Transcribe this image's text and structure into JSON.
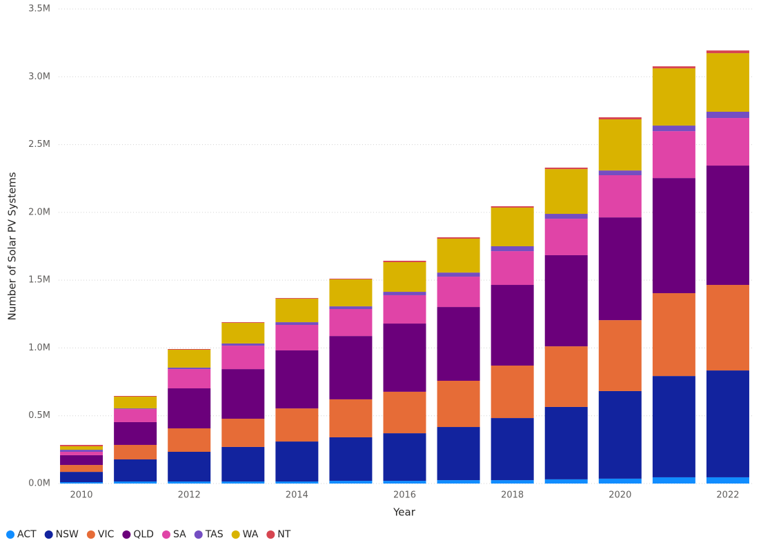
{
  "chart_data": {
    "type": "stacked_bar",
    "x_label": "Year",
    "y_label": "Number of Solar PV Systems",
    "categories": [
      "2010",
      null,
      "2012",
      null,
      "2014",
      null,
      "2016",
      null,
      "2018",
      null,
      "2020",
      null,
      "2022"
    ],
    "series": [
      {
        "name": "ACT",
        "color": "#118dff",
        "values": [
          10000,
          15000,
          15000,
          15000,
          15000,
          20000,
          20000,
          25000,
          25000,
          31000,
          36000,
          46000,
          46000
        ]
      },
      {
        "name": "NSW",
        "color": "#12239e",
        "values": [
          76000,
          163000,
          219000,
          255000,
          295000,
          321000,
          351000,
          392000,
          458000,
          534000,
          646000,
          747000,
          788000
        ]
      },
      {
        "name": "VIC",
        "color": "#e66c37",
        "values": [
          51000,
          107000,
          173000,
          208000,
          244000,
          280000,
          306000,
          341000,
          387000,
          447000,
          523000,
          611000,
          631000
        ]
      },
      {
        "name": "QLD",
        "color": "#6b007b",
        "values": [
          72000,
          168000,
          295000,
          366000,
          428000,
          467000,
          503000,
          544000,
          595000,
          672000,
          758000,
          849000,
          880000
        ]
      },
      {
        "name": "SA",
        "color": "#e044a7",
        "values": [
          25000,
          96000,
          142000,
          173000,
          188000,
          199000,
          209000,
          224000,
          249000,
          269000,
          311000,
          346000,
          351000
        ]
      },
      {
        "name": "TAS",
        "color": "#744ec2",
        "values": [
          15000,
          5000,
          11000,
          16000,
          20000,
          20000,
          25000,
          30000,
          36000,
          36000,
          35000,
          41000,
          46000
        ]
      },
      {
        "name": "WA",
        "color": "#d9b300",
        "values": [
          26000,
          87000,
          132000,
          152000,
          173000,
          199000,
          219000,
          250000,
          285000,
          330000,
          377000,
          422000,
          432000
        ]
      },
      {
        "name": "NT",
        "color": "#d64550",
        "values": [
          10000,
          5000,
          5000,
          5000,
          5000,
          5000,
          10000,
          10000,
          10000,
          11000,
          15000,
          15000,
          20000
        ]
      }
    ],
    "ylim": [
      0,
      3500000
    ],
    "yticks": [
      {
        "value": 0,
        "label": "0.0M"
      },
      {
        "value": 500000,
        "label": "0.5M"
      },
      {
        "value": 1000000,
        "label": "1.0M"
      },
      {
        "value": 1500000,
        "label": "1.5M"
      },
      {
        "value": 2000000,
        "label": "2.0M"
      },
      {
        "value": 2500000,
        "label": "2.5M"
      },
      {
        "value": 3000000,
        "label": "3.0M"
      },
      {
        "value": 3500000,
        "label": "3.5M"
      }
    ],
    "grid": true,
    "legend": "bottom-left"
  }
}
